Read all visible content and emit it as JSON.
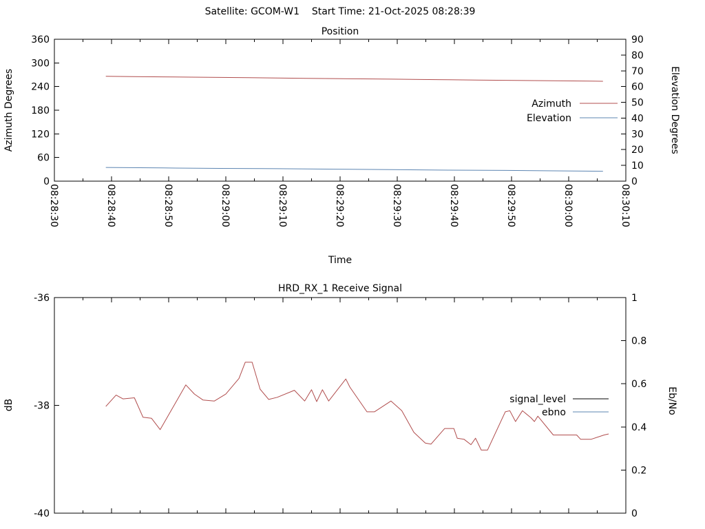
{
  "header": {
    "title": "Satellite: GCOM-W1    Start Time: 21-Oct-2025 08:28:39"
  },
  "chart_data": [
    {
      "type": "line",
      "title": "Position",
      "xlabel": "Time",
      "ylabel_left": "Azimuth Degrees",
      "ylabel_right": "Elevation Degrees",
      "x_tick_labels": [
        "08:28:30",
        "08:28:40",
        "08:28:50",
        "08:29:00",
        "08:29:10",
        "08:29:20",
        "08:29:30",
        "08:29:40",
        "08:29:50",
        "08:30:00",
        "08:30:10"
      ],
      "x_range_seconds": [
        0,
        100
      ],
      "ylim_left": [
        0,
        360
      ],
      "y_ticks_left": [
        0,
        60,
        120,
        180,
        240,
        300,
        360
      ],
      "ylim_right": [
        0,
        90
      ],
      "y_ticks_right": [
        0,
        10,
        20,
        30,
        40,
        50,
        60,
        70,
        80,
        90
      ],
      "grid": false,
      "legend_position": "right-inside",
      "legend": [
        {
          "label": "Azimuth",
          "color": "#b04c4c"
        },
        {
          "label": "Elevation",
          "color": "#5b84b1"
        }
      ],
      "series": [
        {
          "name": "Azimuth",
          "axis": "left",
          "color": "#b04c4c",
          "points": [
            [
              9,
              266.0
            ],
            [
              14,
              265.3
            ],
            [
              19,
              264.6
            ],
            [
              24,
              263.8
            ],
            [
              29,
              263.1
            ],
            [
              34,
              262.4
            ],
            [
              39,
              261.7
            ],
            [
              44,
              260.9
            ],
            [
              49,
              260.2
            ],
            [
              54,
              259.5
            ],
            [
              59,
              258.8
            ],
            [
              64,
              258.0
            ],
            [
              69,
              257.3
            ],
            [
              74,
              256.6
            ],
            [
              79,
              255.9
            ],
            [
              84,
              255.1
            ],
            [
              89,
              254.4
            ],
            [
              94,
              253.7
            ],
            [
              96,
              253.4
            ]
          ]
        },
        {
          "name": "Elevation",
          "axis": "right",
          "color": "#5b84b1",
          "points": [
            [
              9,
              8.7
            ],
            [
              19,
              8.4
            ],
            [
              29,
              8.1
            ],
            [
              39,
              7.9
            ],
            [
              49,
              7.6
            ],
            [
              59,
              7.3
            ],
            [
              69,
              7.0
            ],
            [
              79,
              6.8
            ],
            [
              89,
              6.5
            ],
            [
              96,
              6.3
            ]
          ]
        }
      ]
    },
    {
      "type": "line",
      "title": "HRD_RX_1 Receive Signal",
      "xlabel": "",
      "ylabel_left": "dB",
      "ylabel_right": "Eb/No",
      "x_tick_labels": [],
      "x_major_tick_count": 11,
      "x_range_seconds": [
        0,
        100
      ],
      "ylim_left": [
        -40,
        -36
      ],
      "y_ticks_left": [
        -40,
        -38,
        -36
      ],
      "ylim_right": [
        0,
        1
      ],
      "y_ticks_right": [
        0,
        0.2,
        0.4,
        0.6,
        0.8,
        1
      ],
      "grid": false,
      "legend_position": "right-inside",
      "legend": [
        {
          "label": "signal_level",
          "color": "#000000"
        },
        {
          "label": "ebno",
          "color": "#5b84b1"
        }
      ],
      "series": [
        {
          "name": "signal_level",
          "axis": "left",
          "color": "#b04c4c",
          "points": [
            [
              9,
              -38.02
            ],
            [
              10.8,
              -37.81
            ],
            [
              12,
              -37.88
            ],
            [
              14,
              -37.86
            ],
            [
              15.5,
              -38.22
            ],
            [
              17,
              -38.24
            ],
            [
              18.5,
              -38.45
            ],
            [
              23,
              -37.62
            ],
            [
              24.5,
              -37.79
            ],
            [
              26,
              -37.9
            ],
            [
              28,
              -37.92
            ],
            [
              30,
              -37.79
            ],
            [
              32.3,
              -37.5
            ],
            [
              33.4,
              -37.2
            ],
            [
              34.6,
              -37.2
            ],
            [
              36,
              -37.7
            ],
            [
              37.5,
              -37.89
            ],
            [
              39,
              -37.85
            ],
            [
              42,
              -37.72
            ],
            [
              43.8,
              -37.92
            ],
            [
              45,
              -37.71
            ],
            [
              45.9,
              -37.93
            ],
            [
              46.9,
              -37.71
            ],
            [
              48,
              -37.92
            ],
            [
              51,
              -37.51
            ],
            [
              51.7,
              -37.66
            ],
            [
              54.7,
              -38.12
            ],
            [
              56,
              -38.12
            ],
            [
              58.9,
              -37.92
            ],
            [
              60.8,
              -38.1
            ],
            [
              62.9,
              -38.5
            ],
            [
              64.9,
              -38.7
            ],
            [
              65.9,
              -38.72
            ],
            [
              68.3,
              -38.43
            ],
            [
              69.9,
              -38.43
            ],
            [
              70.5,
              -38.61
            ],
            [
              71.7,
              -38.63
            ],
            [
              72.9,
              -38.73
            ],
            [
              73.7,
              -38.61
            ],
            [
              74.7,
              -38.83
            ],
            [
              75.8,
              -38.83
            ],
            [
              78.9,
              -38.12
            ],
            [
              79.7,
              -38.1
            ],
            [
              80.7,
              -38.3
            ],
            [
              81.9,
              -38.1
            ],
            [
              83.4,
              -38.23
            ],
            [
              84,
              -38.3
            ],
            [
              84.6,
              -38.2
            ],
            [
              87.3,
              -38.55
            ],
            [
              91.4,
              -38.55
            ],
            [
              92.1,
              -38.63
            ],
            [
              93.9,
              -38.63
            ],
            [
              96.2,
              -38.55
            ],
            [
              97,
              -38.53
            ]
          ]
        },
        {
          "name": "ebno",
          "axis": "right",
          "color": "#5b84b1",
          "points": []
        }
      ]
    }
  ]
}
